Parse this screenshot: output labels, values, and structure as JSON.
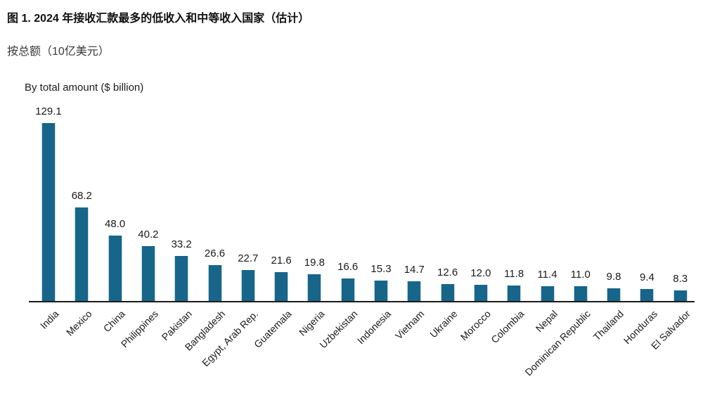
{
  "header": {
    "title": "图 1. 2024 年接收汇款最多的低收入和中等收入国家（估计）",
    "subtitle": "按总额（10亿美元）"
  },
  "chart_data": {
    "type": "bar",
    "title": "By total amount ($ billion)",
    "categories": [
      "India",
      "Mexico",
      "China",
      "Philippines",
      "Pakistan",
      "Bangladesh",
      "Egypt, Arab Rep.",
      "Guatemala",
      "Nigeria",
      "Uzbekistan",
      "Indonesia",
      "Vietnam",
      "Ukraine",
      "Morocco",
      "Colombia",
      "Nepal",
      "Dominican Republic",
      "Thailand",
      "Honduras",
      "El Salvador"
    ],
    "values": [
      129.1,
      68.2,
      48.0,
      40.2,
      33.2,
      26.6,
      22.7,
      21.6,
      19.8,
      16.6,
      15.3,
      14.7,
      12.6,
      12.0,
      11.8,
      11.4,
      11.0,
      9.8,
      9.4,
      8.3
    ],
    "value_labels": [
      "129.1",
      "68.2",
      "48.0",
      "40.2",
      "33.2",
      "26.6",
      "22.7",
      "21.6",
      "19.8",
      "16.6",
      "15.3",
      "14.7",
      "12.6",
      "12.0",
      "11.8",
      "11.4",
      "11.0",
      "9.8",
      "9.4",
      "8.3"
    ],
    "ylim": [
      0,
      135
    ],
    "grid": false,
    "legend": "none",
    "bar_color": "#18658a",
    "bar_edge_color": "#bcd8e4",
    "axis_color": "#1a1a1a",
    "label_color": "#1a1a1a",
    "x_label_rotation_deg": 45
  }
}
